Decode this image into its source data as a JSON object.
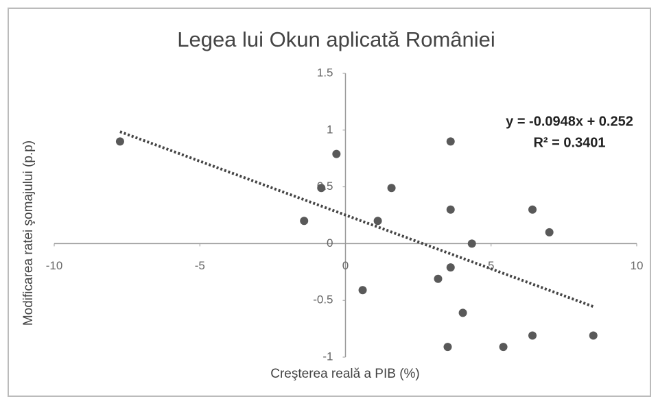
{
  "chart_data": {
    "type": "scatter",
    "title": "Legea lui Okun aplicată României",
    "x_label": "Creşterea reală a PIB (%)",
    "y_label": "Modificarea ratei şomajului  (p.p)",
    "x": [
      -7.74,
      -0.31,
      -0.83,
      -1.42,
      1.58,
      1.11,
      3.61,
      3.61,
      6.42,
      7.0,
      4.34,
      3.61,
      3.18,
      0.59,
      4.03,
      3.51,
      5.42,
      6.42,
      8.51
    ],
    "values": [
      0.9,
      0.79,
      0.49,
      0.2,
      0.49,
      0.2,
      0.9,
      0.3,
      0.3,
      0.1,
      0.0,
      -0.21,
      -0.31,
      -0.41,
      -0.61,
      -0.91,
      -0.91,
      -0.81,
      -0.81
    ],
    "color": "#595959",
    "xlim": [
      -10,
      10
    ],
    "xticks": [
      -10,
      -5,
      0,
      5,
      10
    ],
    "ylim": [
      -1,
      1.5
    ],
    "yticks": [
      -1,
      -0.5,
      0,
      0.5,
      1,
      1.5
    ],
    "trendline": {
      "slope": -0.0948,
      "intercept": 0.252,
      "equation": "y = -0.0948x + 0.252",
      "r_squared": "R² = 0.3401"
    }
  }
}
